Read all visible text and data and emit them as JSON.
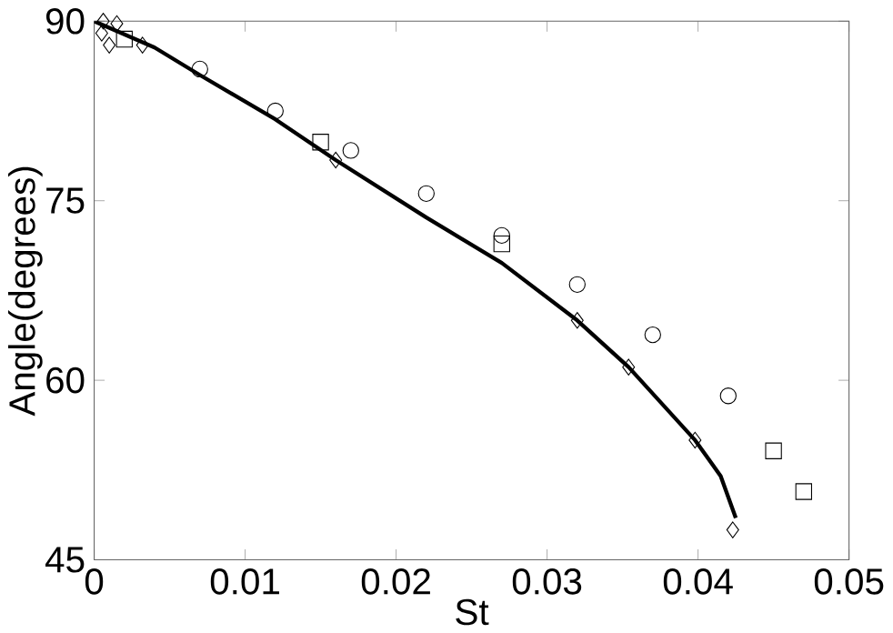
{
  "chart_data": {
    "type": "scatter",
    "xlabel": "St",
    "ylabel": "Angle(degrees)",
    "xlim": [
      0,
      0.05
    ],
    "ylim": [
      45,
      90
    ],
    "xticks": [
      0,
      0.01,
      0.02,
      0.03,
      0.04,
      0.05
    ],
    "yticks": [
      45,
      60,
      75,
      90
    ],
    "grid": false,
    "series": [
      {
        "type": "line",
        "color": "#000000",
        "marker": "none",
        "line_style": "solid",
        "x": [
          0,
          0.004,
          0.007,
          0.012,
          0.016,
          0.022,
          0.027,
          0.032,
          0.0354,
          0.0398,
          0.0415,
          0.0425
        ],
        "values": [
          90,
          87.8,
          85.5,
          81.8,
          78.4,
          73.6,
          69.8,
          65,
          61.1,
          55,
          52,
          48.5
        ]
      },
      {
        "color": "#000000",
        "marker": "circle",
        "x": [
          0.007,
          0.012,
          0.017,
          0.022,
          0.027,
          0.032,
          0.037,
          0.042
        ],
        "values": [
          86,
          82.5,
          79.2,
          75.6,
          72.1,
          68,
          63.8,
          58.7
        ]
      },
      {
        "color": "#000000",
        "marker": "square",
        "x": [
          0.002,
          0.015,
          0.027,
          0.045,
          0.047
        ],
        "values": [
          88.5,
          79.9,
          71.4,
          54.1,
          50.7
        ]
      },
      {
        "color": "#000000",
        "marker": "diamond",
        "x": [
          0.0006,
          0.0015,
          0.0005,
          0.001,
          0.0032,
          0.016,
          0.032,
          0.0354,
          0.0398,
          0.0423
        ],
        "values": [
          90,
          89.8,
          89,
          88,
          88,
          78.4,
          65,
          61.1,
          55,
          47.5
        ]
      }
    ]
  }
}
